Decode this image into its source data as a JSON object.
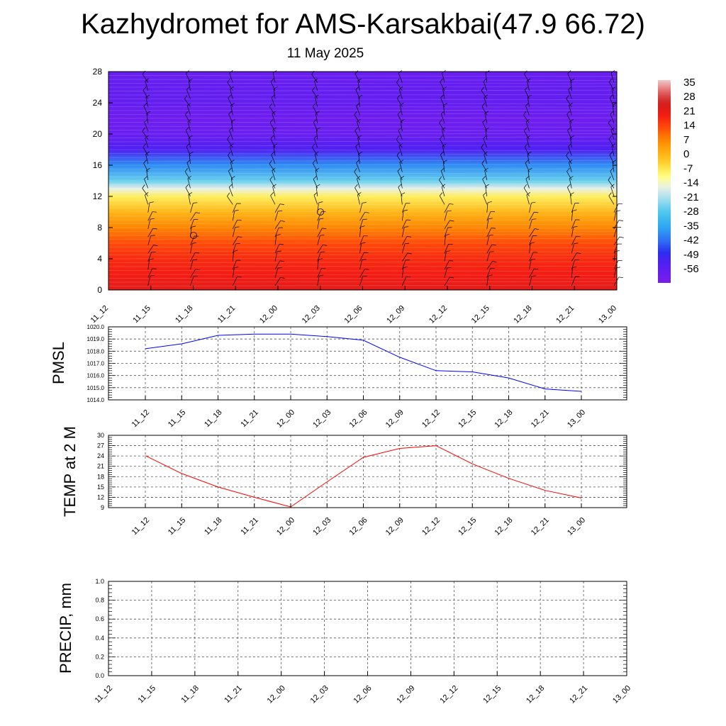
{
  "title": "Kazhydromet for AMS-Karsakbai(47.9 66.72)",
  "subtitle": "11 May 2025",
  "colors": {
    "pmsl_line": "#0000ff",
    "temp_line": "#ff0000",
    "precip_line": "#006400",
    "grid": "#555555"
  },
  "chart_data": [
    {
      "type": "heatmap",
      "title": "",
      "xlabel": "",
      "ylabel": "",
      "x": [
        "11_12",
        "11_15",
        "11_18",
        "11_21",
        "12_00",
        "12_03",
        "12_06",
        "12_09",
        "12_12",
        "12_15",
        "12_18",
        "12_21",
        "13_00"
      ],
      "ylim": [
        0,
        28
      ],
      "yticks": [
        0,
        4,
        8,
        12,
        16,
        20,
        24,
        28
      ],
      "colorbar": {
        "labels": [
          "35",
          "28",
          "21",
          "14",
          "7",
          "0",
          "-7",
          "-14",
          "-21",
          "-28",
          "-35",
          "-42",
          "-49",
          "-56"
        ],
        "range": [
          -60,
          38
        ]
      },
      "temperature_profile": [
        {
          "level": 0,
          "value": 24
        },
        {
          "level": 2,
          "value": 21
        },
        {
          "level": 4,
          "value": 19
        },
        {
          "level": 6,
          "value": 15
        },
        {
          "level": 8,
          "value": 9
        },
        {
          "level": 10,
          "value": 2
        },
        {
          "level": 12,
          "value": -6
        },
        {
          "level": 13,
          "value": -14
        },
        {
          "level": 14,
          "value": -24
        },
        {
          "level": 16,
          "value": -36
        },
        {
          "level": 18,
          "value": -50
        },
        {
          "level": 20,
          "value": -56
        },
        {
          "level": 22,
          "value": -57
        },
        {
          "level": 24,
          "value": -55
        },
        {
          "level": 26,
          "value": -55
        },
        {
          "level": 28,
          "value": -56
        }
      ],
      "grid": false
    },
    {
      "type": "line",
      "ylabel": "PMSL",
      "x": [
        "11_12",
        "11_15",
        "11_18",
        "11_21",
        "12_00",
        "12_03",
        "12_06",
        "12_09",
        "12_12",
        "12_15",
        "12_18",
        "12_21",
        "13_00"
      ],
      "series": [
        {
          "values": [
            1018.2,
            1018.6,
            1019.3,
            1019.4,
            1019.4,
            1019.2,
            1018.9,
            1017.5,
            1016.4,
            1016.3,
            1015.8,
            1014.9,
            1014.7
          ]
        }
      ],
      "ylim": [
        1014.0,
        1020.0
      ],
      "yticks": [
        "1014.0",
        "1015.0",
        "1016.0",
        "1017.0",
        "1018.0",
        "1019.0",
        "1020.0"
      ],
      "grid": true
    },
    {
      "type": "line",
      "ylabel": "TEMP at 2 M",
      "x": [
        "11_12",
        "11_15",
        "11_18",
        "11_21",
        "12_00",
        "12_03",
        "12_06",
        "12_09",
        "12_12",
        "12_15",
        "12_18",
        "12_21",
        "13_00"
      ],
      "series": [
        {
          "values": [
            24.1,
            18.9,
            15.0,
            12.0,
            9.2,
            16.5,
            23.6,
            26.2,
            27.0,
            21.7,
            17.5,
            14.0,
            11.8
          ]
        }
      ],
      "ylim": [
        9,
        30
      ],
      "yticks": [
        "9",
        "12",
        "15",
        "18",
        "21",
        "24",
        "27",
        "30"
      ],
      "grid": true
    },
    {
      "type": "line",
      "ylabel": "PRECIP, mm",
      "x": [
        "11_12",
        "11_15",
        "11_18",
        "11_21",
        "12_00",
        "12_03",
        "12_06",
        "12_09",
        "12_12",
        "12_15",
        "12_18",
        "12_21",
        "13_00"
      ],
      "series": [
        {
          "values": [
            0,
            0,
            0,
            0,
            0,
            0,
            0,
            0,
            0,
            0,
            0,
            0,
            0
          ]
        }
      ],
      "ylim": [
        0,
        1.0
      ],
      "yticks": [
        "0.0",
        "0.2",
        "0.4",
        "0.6",
        "0.8",
        "1.0"
      ],
      "grid": true
    }
  ]
}
